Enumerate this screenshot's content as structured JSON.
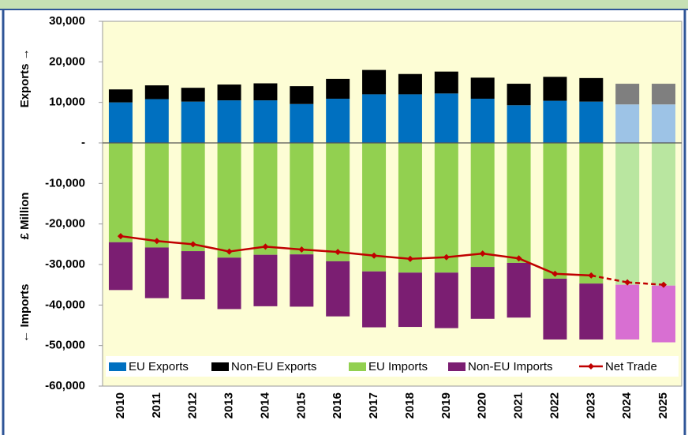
{
  "chart_data": {
    "type": "stacked-bar-line",
    "y_axis_labels": [
      "Exports →",
      "£ Million",
      "← Imports"
    ],
    "categories": [
      "2010",
      "2011",
      "2012",
      "2013",
      "2014",
      "2015",
      "2016",
      "2017",
      "2018",
      "2019",
      "2020",
      "2021",
      "2022",
      "2023",
      "2024",
      "2025"
    ],
    "series": [
      {
        "name": "EU Exports",
        "kind": "bar",
        "color": "#0070c0",
        "colors": [
          "#0070c0",
          "#0070c0",
          "#0070c0",
          "#0070c0",
          "#0070c0",
          "#0070c0",
          "#0070c0",
          "#0070c0",
          "#0070c0",
          "#0070c0",
          "#0070c0",
          "#0070c0",
          "#0070c0",
          "#0070c0",
          "#9dc3e6",
          "#9dc3e6"
        ],
        "values": [
          10000,
          10800,
          10200,
          10500,
          10500,
          9600,
          10900,
          12000,
          12000,
          12200,
          10900,
          9300,
          10400,
          10200,
          9500,
          9500
        ]
      },
      {
        "name": "Non-EU Exports",
        "kind": "bar",
        "color": "#000000",
        "colors": [
          "#000000",
          "#000000",
          "#000000",
          "#000000",
          "#000000",
          "#000000",
          "#000000",
          "#000000",
          "#000000",
          "#000000",
          "#000000",
          "#000000",
          "#000000",
          "#000000",
          "#7f7f7f",
          "#7f7f7f"
        ],
        "values": [
          3200,
          3400,
          3400,
          3900,
          4200,
          4400,
          4900,
          6000,
          5000,
          5400,
          5200,
          5300,
          5900,
          5800,
          5100,
          5100
        ]
      },
      {
        "name": "EU Imports",
        "kind": "bar",
        "color": "#92d050",
        "colors": [
          "#92d050",
          "#92d050",
          "#92d050",
          "#92d050",
          "#92d050",
          "#92d050",
          "#92d050",
          "#92d050",
          "#92d050",
          "#92d050",
          "#92d050",
          "#92d050",
          "#92d050",
          "#92d050",
          "#b9e6a0",
          "#b9e6a0"
        ],
        "values": [
          -24500,
          -25800,
          -26700,
          -28300,
          -27600,
          -27500,
          -29200,
          -31700,
          -32000,
          -32000,
          -30600,
          -29600,
          -33500,
          -34700,
          -35000,
          -35200
        ]
      },
      {
        "name": "Non-EU Imports",
        "kind": "bar",
        "color": "#7b1e72",
        "colors": [
          "#7b1e72",
          "#7b1e72",
          "#7b1e72",
          "#7b1e72",
          "#7b1e72",
          "#7b1e72",
          "#7b1e72",
          "#7b1e72",
          "#7b1e72",
          "#7b1e72",
          "#7b1e72",
          "#7b1e72",
          "#7b1e72",
          "#7b1e72",
          "#d86fd2",
          "#d86fd2"
        ],
        "values": [
          -11800,
          -12500,
          -11900,
          -12700,
          -12700,
          -12900,
          -13600,
          -13800,
          -13400,
          -13700,
          -12800,
          -13500,
          -15000,
          -13800,
          -13500,
          -14000
        ]
      },
      {
        "name": "Net Trade",
        "kind": "line",
        "color": "#c00000",
        "dashed": [
          false,
          false,
          false,
          false,
          false,
          false,
          false,
          false,
          false,
          false,
          false,
          false,
          false,
          false,
          true,
          true
        ],
        "values": [
          -23000,
          -24200,
          -25000,
          -26800,
          -25600,
          -26300,
          -26900,
          -27800,
          -28600,
          -28200,
          -27300,
          -28500,
          -32300,
          -32700,
          -34400,
          -35000
        ]
      }
    ],
    "ylim": [
      -60000,
      30000
    ],
    "yticks": [
      {
        "value": -60000,
        "label": "-60,000"
      },
      {
        "value": -50000,
        "label": "-50,000"
      },
      {
        "value": -40000,
        "label": "-40,000"
      },
      {
        "value": -30000,
        "label": "-30,000"
      },
      {
        "value": -20000,
        "label": "-20,000"
      },
      {
        "value": -10000,
        "label": "-10,000"
      },
      {
        "value": 0,
        "label": "-"
      },
      {
        "value": 10000,
        "label": "10,000"
      },
      {
        "value": 20000,
        "label": "20,000"
      },
      {
        "value": 30000,
        "label": "30,000"
      }
    ],
    "background": "#fdfdd5"
  }
}
